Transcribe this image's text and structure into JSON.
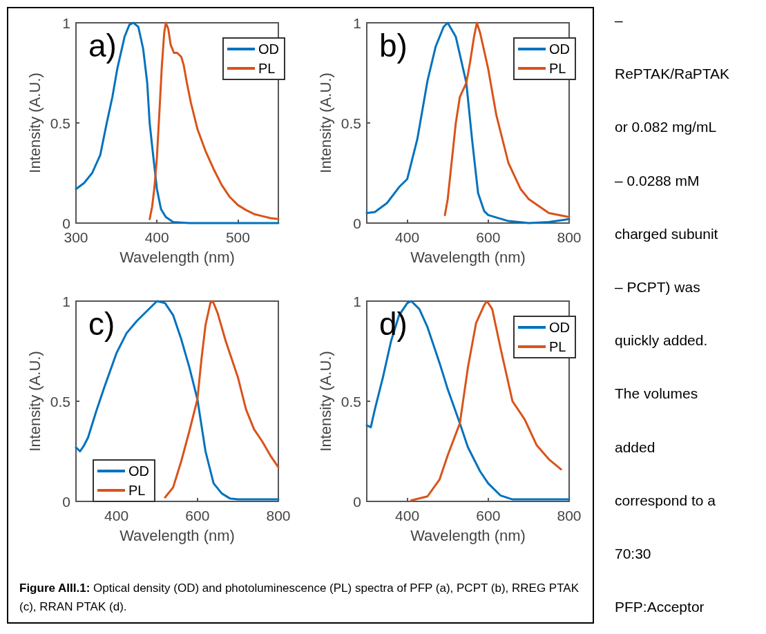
{
  "chart_data": [
    {
      "type": "line",
      "xlabel": "Wavelength (nm)",
      "ylabel": "Intensity (A.U.)",
      "annotations": [
        "a)"
      ],
      "xlim": [
        300,
        550
      ],
      "xticks": [
        300,
        400,
        500
      ],
      "ylim": [
        0,
        1
      ],
      "yticks": [
        0,
        0.5,
        1
      ],
      "legend": "top right",
      "marker": "none",
      "line_style": "solid",
      "series": [
        {
          "name": "OD",
          "color": "#0072bd",
          "x": [
            300,
            310,
            320,
            330,
            338,
            345,
            351,
            360,
            366,
            371,
            377,
            383,
            388,
            391,
            395,
            400,
            405,
            411,
            420,
            440,
            500,
            550
          ],
          "values": [
            0.17,
            0.2,
            0.25,
            0.34,
            0.5,
            0.63,
            0.77,
            0.93,
            0.99,
            1,
            0.98,
            0.87,
            0.7,
            0.5,
            0.35,
            0.17,
            0.07,
            0.03,
            0.005,
            0,
            0,
            0
          ]
        },
        {
          "name": "PL",
          "color": "#d95319",
          "x": [
            391,
            394,
            397,
            400,
            403,
            406,
            409,
            411,
            414,
            417,
            421,
            425,
            430,
            433,
            437,
            442,
            450,
            460,
            470,
            480,
            490,
            500,
            510,
            520,
            530,
            540,
            550
          ],
          "values": [
            0.02,
            0.08,
            0.18,
            0.33,
            0.55,
            0.78,
            0.95,
            1,
            0.97,
            0.89,
            0.85,
            0.85,
            0.83,
            0.79,
            0.7,
            0.6,
            0.47,
            0.36,
            0.27,
            0.19,
            0.13,
            0.09,
            0.065,
            0.045,
            0.035,
            0.025,
            0.02
          ]
        }
      ]
    },
    {
      "type": "line",
      "xlabel": "Wavelength (nm)",
      "ylabel": "Intensity (A.U.)",
      "annotations": [
        "b)"
      ],
      "xlim": [
        300,
        800
      ],
      "xticks": [
        400,
        600,
        800
      ],
      "ylim": [
        0,
        1
      ],
      "yticks": [
        0,
        0.5,
        1
      ],
      "legend": "top right",
      "marker": "none",
      "line_style": "solid",
      "series": [
        {
          "name": "OD",
          "color": "#0072bd",
          "x": [
            300,
            320,
            350,
            380,
            400,
            425,
            450,
            470,
            490,
            500,
            520,
            546,
            560,
            575,
            590,
            600,
            650,
            700,
            750,
            800
          ],
          "values": [
            0.05,
            0.055,
            0.1,
            0.18,
            0.22,
            0.42,
            0.71,
            0.88,
            0.98,
            1,
            0.93,
            0.7,
            0.42,
            0.15,
            0.06,
            0.04,
            0.01,
            0,
            0.005,
            0.02
          ]
        },
        {
          "name": "PL",
          "color": "#d95319",
          "x": [
            493,
            500,
            510,
            520,
            530,
            546,
            555,
            565,
            572,
            580,
            600,
            620,
            650,
            680,
            700,
            750,
            800
          ],
          "values": [
            0.04,
            0.12,
            0.31,
            0.5,
            0.63,
            0.7,
            0.8,
            0.93,
            1,
            0.95,
            0.77,
            0.54,
            0.3,
            0.17,
            0.12,
            0.05,
            0.03
          ]
        }
      ]
    },
    {
      "type": "line",
      "xlabel": "Wavelength (nm)",
      "ylabel": "Intensity (A.U.)",
      "annotations": [
        "c)"
      ],
      "xlim": [
        300,
        800
      ],
      "xticks": [
        400,
        600,
        800
      ],
      "ylim": [
        0,
        1
      ],
      "yticks": [
        0,
        0.5,
        1
      ],
      "legend": "bottom left",
      "marker": "none",
      "line_style": "solid",
      "series": [
        {
          "name": "OD",
          "color": "#0072bd",
          "x": [
            300,
            310,
            320,
            330,
            350,
            370,
            400,
            425,
            450,
            475,
            500,
            520,
            540,
            560,
            580,
            600,
            620,
            640,
            660,
            680,
            700,
            800
          ],
          "values": [
            0.27,
            0.25,
            0.28,
            0.32,
            0.45,
            0.57,
            0.74,
            0.84,
            0.9,
            0.95,
            1,
            0.99,
            0.93,
            0.81,
            0.67,
            0.51,
            0.25,
            0.09,
            0.04,
            0.015,
            0.01,
            0.01
          ]
        },
        {
          "name": "PL",
          "color": "#d95319",
          "x": [
            520,
            540,
            560,
            580,
            600,
            610,
            620,
            632,
            638,
            650,
            670,
            700,
            720,
            740,
            760,
            780,
            800
          ],
          "values": [
            0.02,
            0.07,
            0.2,
            0.35,
            0.51,
            0.71,
            0.88,
            0.99,
            1,
            0.94,
            0.8,
            0.62,
            0.46,
            0.36,
            0.3,
            0.23,
            0.17
          ]
        }
      ]
    },
    {
      "type": "line",
      "xlabel": "Wavelength (nm)",
      "ylabel": "Intensity (A.U.)",
      "annotations": [
        "d)"
      ],
      "xlim": [
        300,
        800
      ],
      "xticks": [
        400,
        600,
        800
      ],
      "ylim": [
        0,
        1
      ],
      "yticks": [
        0,
        0.5,
        1
      ],
      "legend": "top right",
      "marker": "none",
      "line_style": "solid",
      "series": [
        {
          "name": "OD",
          "color": "#0072bd",
          "x": [
            300,
            310,
            320,
            340,
            360,
            380,
            400,
            410,
            430,
            450,
            480,
            500,
            530,
            550,
            580,
            600,
            630,
            660,
            800
          ],
          "values": [
            0.38,
            0.37,
            0.46,
            0.62,
            0.8,
            0.93,
            0.99,
            1,
            0.96,
            0.87,
            0.69,
            0.56,
            0.39,
            0.27,
            0.15,
            0.09,
            0.03,
            0.01,
            0.01
          ]
        },
        {
          "name": "PL",
          "color": "#d95319",
          "x": [
            410,
            450,
            480,
            500,
            530,
            550,
            570,
            590,
            597,
            610,
            630,
            660,
            690,
            720,
            750,
            780
          ],
          "values": [
            0.005,
            0.025,
            0.11,
            0.23,
            0.39,
            0.67,
            0.89,
            0.98,
            1,
            0.96,
            0.77,
            0.5,
            0.41,
            0.28,
            0.21,
            0.16
          ]
        }
      ]
    },
    {
      "type": "other",
      "title": "Figure AIII.1:",
      "annotations": [
        "Optical density (OD) and photoluminescence (PL) spectra of PFP (a), PCPT (b), RREG PTAK (c), RRAN PTAK (d)."
      ]
    },
    {
      "type": "other",
      "annotations": [
        "–",
        "RePTAK/RaPTAK",
        "or 0.082 mg/mL",
        "– 0.0288 mM",
        "charged subunit",
        "– PCPT) was",
        "quickly added.",
        "The volumes",
        "added",
        "correspond to a",
        "70:30",
        "PFP:Acceptor"
      ]
    }
  ]
}
